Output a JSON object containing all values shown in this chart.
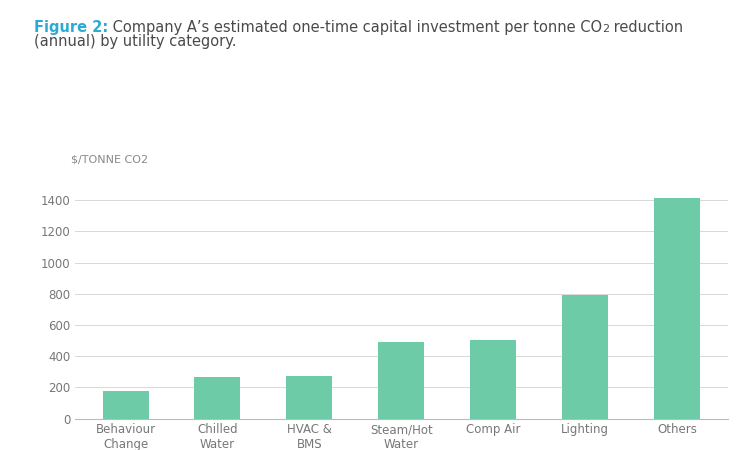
{
  "categories": [
    "Behaviour\nChange",
    "Chilled\nWater",
    "HVAC &\nBMS",
    "Steam/Hot\nWater",
    "Comp Air",
    "Lighting",
    "Others"
  ],
  "values": [
    175,
    265,
    275,
    490,
    505,
    790,
    1415
  ],
  "bar_color": "#6ECBA8",
  "ylabel": "$/TONNE CO2",
  "ylim": [
    0,
    1500
  ],
  "yticks": [
    0,
    200,
    400,
    600,
    800,
    1000,
    1200,
    1400
  ],
  "grid_color": "#d8d8d8",
  "background_color": "#ffffff",
  "title_fig_label": "Figure 2:",
  "title_fig_label_color": "#29ABD4",
  "title_body": " Company A’s estimated one-time capital investment per tonne CO",
  "title_sub": "2",
  "title_after_sub": " reduction",
  "title_line2": "(annual) by utility category.",
  "title_color": "#4a4a4a",
  "title_fontsize": 10.5,
  "ylabel_fontsize": 8,
  "tick_fontsize": 8.5,
  "bar_width": 0.5
}
